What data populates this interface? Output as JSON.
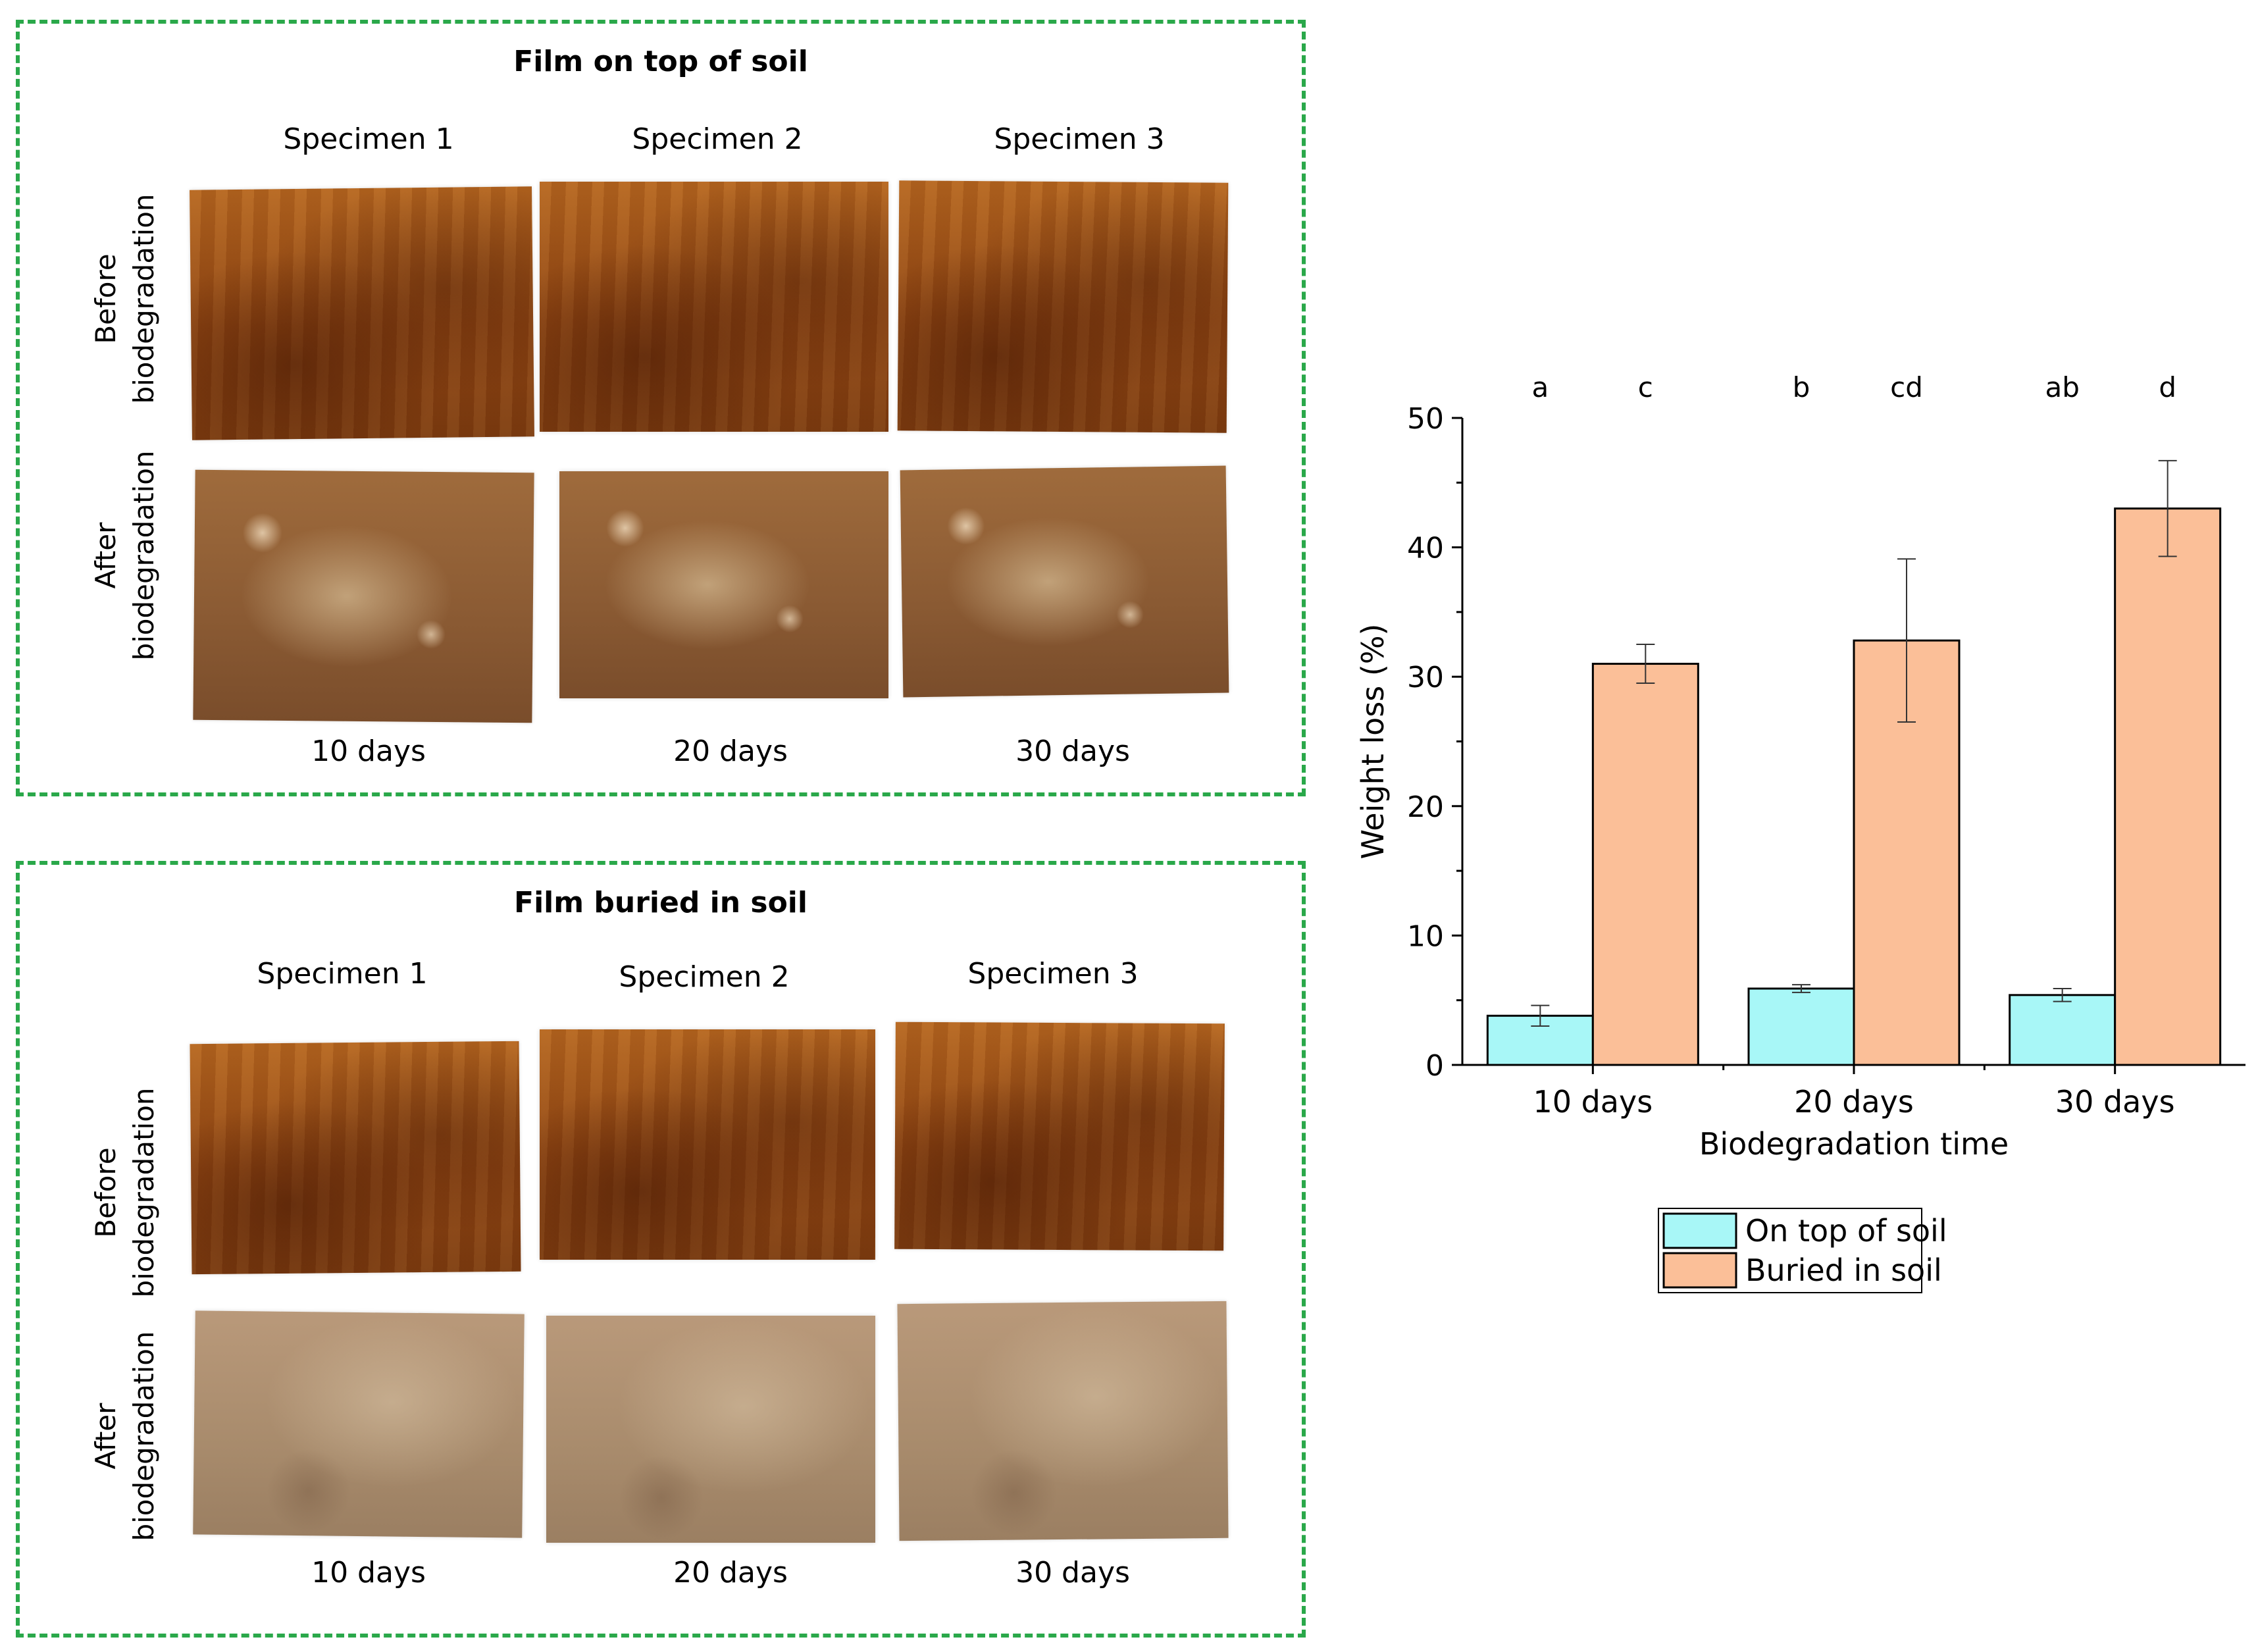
{
  "panel_top": {
    "title": "Film on top of soil",
    "specimens": [
      "Specimen 1",
      "Specimen 2",
      "Specimen 3"
    ],
    "row_before": [
      "Before",
      "biodegradation"
    ],
    "row_after": [
      "After",
      "biodegradation"
    ],
    "days": [
      "10 days",
      "20 days",
      "30 days"
    ]
  },
  "panel_bottom": {
    "title": "Film buried in soil",
    "specimens": [
      "Specimen 1",
      "Specimen 2",
      "Specimen 3"
    ],
    "row_before": [
      "Before",
      "biodegradation"
    ],
    "row_after": [
      "After",
      "biodegradation"
    ],
    "days": [
      "10 days",
      "20 days",
      "30 days"
    ]
  },
  "chart_data": {
    "type": "bar",
    "categories": [
      "10 days",
      "20 days",
      "30 days"
    ],
    "series": [
      {
        "name": "On top of soil",
        "color": "#a8f7f7",
        "values": [
          3.8,
          5.9,
          5.4
        ],
        "errors": [
          0.8,
          0.3,
          0.5
        ]
      },
      {
        "name": "Buried in soil",
        "color": "#fbbf98",
        "values": [
          31.0,
          32.8,
          43.0
        ],
        "errors": [
          1.5,
          6.3,
          3.7
        ]
      }
    ],
    "significance_letters": [
      [
        "a",
        "c"
      ],
      [
        "b",
        "cd"
      ],
      [
        "ab",
        "d"
      ]
    ],
    "xlabel": "Biodegradation time",
    "ylabel": "Weight loss (%)",
    "ylim": [
      0,
      50
    ],
    "yticks": [
      0,
      10,
      20,
      30,
      40,
      50
    ],
    "legend_position": "bottom"
  }
}
